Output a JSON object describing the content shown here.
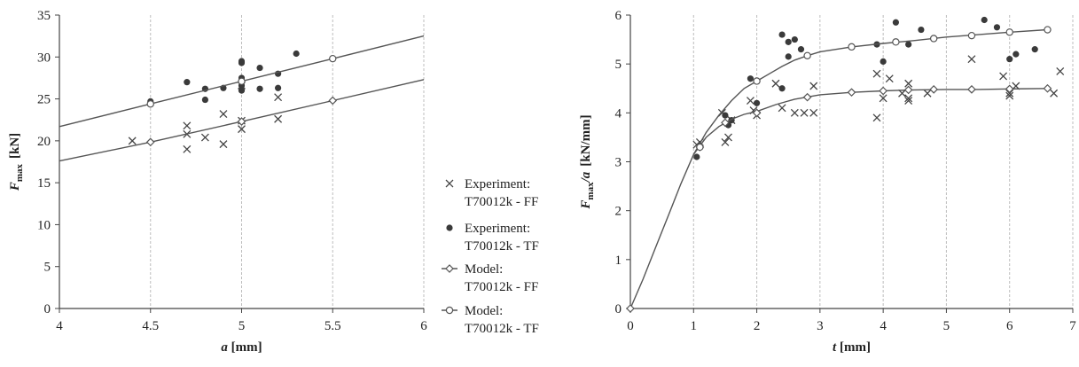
{
  "chart_data": [
    {
      "type": "scatter",
      "xlabel": "a",
      "xunit": "[mm]",
      "ylabel": "F",
      "ylabel_sub": "max",
      "yunit": "[kN]",
      "xlim": [
        4,
        6
      ],
      "ylim": [
        0,
        35
      ],
      "xticks": [
        "4",
        "4.5",
        "5",
        "5.5",
        "6"
      ],
      "yticks": [
        "0",
        "5",
        "10",
        "15",
        "20",
        "25",
        "30",
        "35"
      ],
      "grid": "vertical dashed",
      "series": [
        {
          "name": "Experiment: T70012k - FF",
          "marker": "cross",
          "x": [
            4.4,
            4.7,
            4.7,
            4.7,
            4.8,
            4.9,
            4.9,
            5.0,
            5.0,
            5.0,
            5.2,
            5.2
          ],
          "y": [
            20.0,
            21.8,
            20.8,
            19.0,
            20.4,
            23.2,
            19.6,
            22.4,
            21.4,
            26.6,
            25.2,
            22.6
          ]
        },
        {
          "name": "Experiment: T70012k - TF",
          "marker": "dot",
          "x": [
            4.5,
            4.7,
            4.8,
            4.8,
            4.9,
            5.0,
            5.0,
            5.0,
            5.0,
            5.0,
            5.0,
            5.1,
            5.1,
            5.2,
            5.2,
            5.3
          ],
          "y": [
            24.7,
            27.0,
            26.2,
            24.9,
            26.3,
            29.5,
            29.3,
            27.5,
            26.6,
            26.0,
            27.0,
            28.7,
            26.2,
            28.0,
            26.3,
            30.4
          ]
        },
        {
          "name": "Model: T70012k - FF",
          "marker": "diamond-line",
          "x": [
            4.0,
            4.5,
            5.0,
            5.5,
            6.0
          ],
          "y": [
            17.6,
            19.85,
            22.3,
            24.8,
            27.3
          ],
          "markers_x": [
            4.5,
            5.0,
            5.5
          ],
          "markers_y": [
            19.85,
            22.3,
            24.8
          ]
        },
        {
          "name": "Model: T70012k - TF",
          "marker": "circle-line",
          "x": [
            4.0,
            4.5,
            5.0,
            5.5,
            6.0
          ],
          "y": [
            21.7,
            24.4,
            27.1,
            29.8,
            32.5
          ],
          "markers_x": [
            4.5,
            5.0,
            5.5
          ],
          "markers_y": [
            24.4,
            27.1,
            29.8
          ]
        }
      ]
    },
    {
      "type": "scatter",
      "xlabel": "t",
      "xunit": "[mm]",
      "ylabel": "F",
      "ylabel_sub": "max",
      "ylabel_tail": "/a",
      "yunit": "[kN/mm]",
      "xlim": [
        0,
        7
      ],
      "ylim": [
        0,
        6
      ],
      "xticks": [
        "0",
        "1",
        "2",
        "3",
        "4",
        "5",
        "6",
        "7"
      ],
      "yticks": [
        "0",
        "1",
        "2",
        "3",
        "4",
        "5",
        "6"
      ],
      "grid": "vertical dashed",
      "series": [
        {
          "name": "Experiment: T70012k - FF",
          "marker": "cross",
          "x": [
            1.05,
            1.1,
            1.45,
            1.5,
            1.55,
            1.6,
            1.9,
            1.95,
            2.0,
            2.3,
            2.4,
            2.6,
            2.75,
            2.9,
            2.9,
            3.9,
            3.9,
            4.0,
            4.1,
            4.3,
            4.4,
            4.4,
            4.4,
            4.7,
            5.4,
            5.9,
            6.0,
            6.0,
            6.1,
            6.7,
            6.8
          ],
          "y": [
            3.35,
            3.4,
            4.0,
            3.4,
            3.5,
            3.85,
            4.25,
            4.05,
            3.95,
            4.6,
            4.1,
            4.0,
            4.0,
            4.55,
            4.0,
            4.8,
            3.9,
            4.3,
            4.7,
            4.4,
            4.25,
            4.3,
            4.6,
            4.4,
            5.1,
            4.75,
            4.4,
            4.35,
            4.55,
            4.4,
            4.85
          ]
        },
        {
          "name": "Experiment: T70012k - TF",
          "marker": "dot",
          "x": [
            1.05,
            1.5,
            1.55,
            1.6,
            1.9,
            2.0,
            2.4,
            2.4,
            2.5,
            2.5,
            2.6,
            2.7,
            3.9,
            4.0,
            4.2,
            4.2,
            4.4,
            4.6,
            5.6,
            5.8,
            6.0,
            6.1,
            6.4
          ],
          "y": [
            3.1,
            3.95,
            3.75,
            3.85,
            4.7,
            4.2,
            5.6,
            4.5,
            5.45,
            5.15,
            5.5,
            5.3,
            5.4,
            5.05,
            5.85,
            5.45,
            5.4,
            5.7,
            5.9,
            5.75,
            5.1,
            5.2,
            5.3
          ]
        },
        {
          "name": "Model: T70012k - FF",
          "marker": "diamond-line",
          "x": [
            0,
            0.2,
            0.4,
            0.6,
            0.8,
            1.0,
            1.2,
            1.4,
            1.6,
            1.8,
            2.0,
            2.3,
            2.6,
            3.0,
            3.5,
            4.0,
            4.5,
            5.0,
            5.5,
            6.0,
            6.6
          ],
          "y": [
            0,
            0.6,
            1.25,
            1.9,
            2.55,
            3.15,
            3.5,
            3.72,
            3.87,
            3.97,
            4.03,
            4.17,
            4.28,
            4.37,
            4.42,
            4.45,
            4.47,
            4.48,
            4.48,
            4.49,
            4.5
          ],
          "markers_x": [
            0,
            1.1,
            1.5,
            2.0,
            2.8,
            3.5,
            4.0,
            4.4,
            4.8,
            5.4,
            6.0,
            6.6
          ],
          "markers_y": [
            0,
            3.3,
            3.8,
            4.0,
            4.32,
            4.42,
            4.45,
            4.47,
            4.48,
            4.48,
            4.49,
            4.5
          ]
        },
        {
          "name": "Model: T70012k - TF",
          "marker": "circle-line",
          "x": [
            1.0,
            1.2,
            1.4,
            1.6,
            1.8,
            2.0,
            2.2,
            2.4,
            2.6,
            2.8,
            3.0,
            3.5,
            4.0,
            4.5,
            5.0,
            5.5,
            6.0,
            6.6
          ],
          "y": [
            3.15,
            3.6,
            3.95,
            4.25,
            4.5,
            4.65,
            4.8,
            4.95,
            5.08,
            5.17,
            5.25,
            5.35,
            5.42,
            5.48,
            5.55,
            5.6,
            5.65,
            5.7
          ],
          "markers_x": [
            1.1,
            2.0,
            2.8,
            3.5,
            4.2,
            4.8,
            5.4,
            6.0,
            6.6
          ],
          "markers_y": [
            3.3,
            4.65,
            5.17,
            5.35,
            5.45,
            5.52,
            5.58,
            5.65,
            5.7
          ]
        }
      ]
    }
  ],
  "legend": [
    {
      "marker": "cross",
      "lines": [
        "Experiment:",
        "T70012k - FF"
      ]
    },
    {
      "marker": "dot",
      "lines": [
        "Experiment:",
        "T70012k - TF"
      ]
    },
    {
      "marker": "diamond-line",
      "lines": [
        "Model:",
        "T70012k - FF"
      ]
    },
    {
      "marker": "circle-line",
      "lines": [
        "Model:",
        "T70012k - TF"
      ]
    }
  ],
  "colors": {
    "axis": "#444444",
    "grid": "#bdbdbd",
    "marker": "#444444",
    "dot": "#3a3a3a",
    "line": "#555555"
  }
}
